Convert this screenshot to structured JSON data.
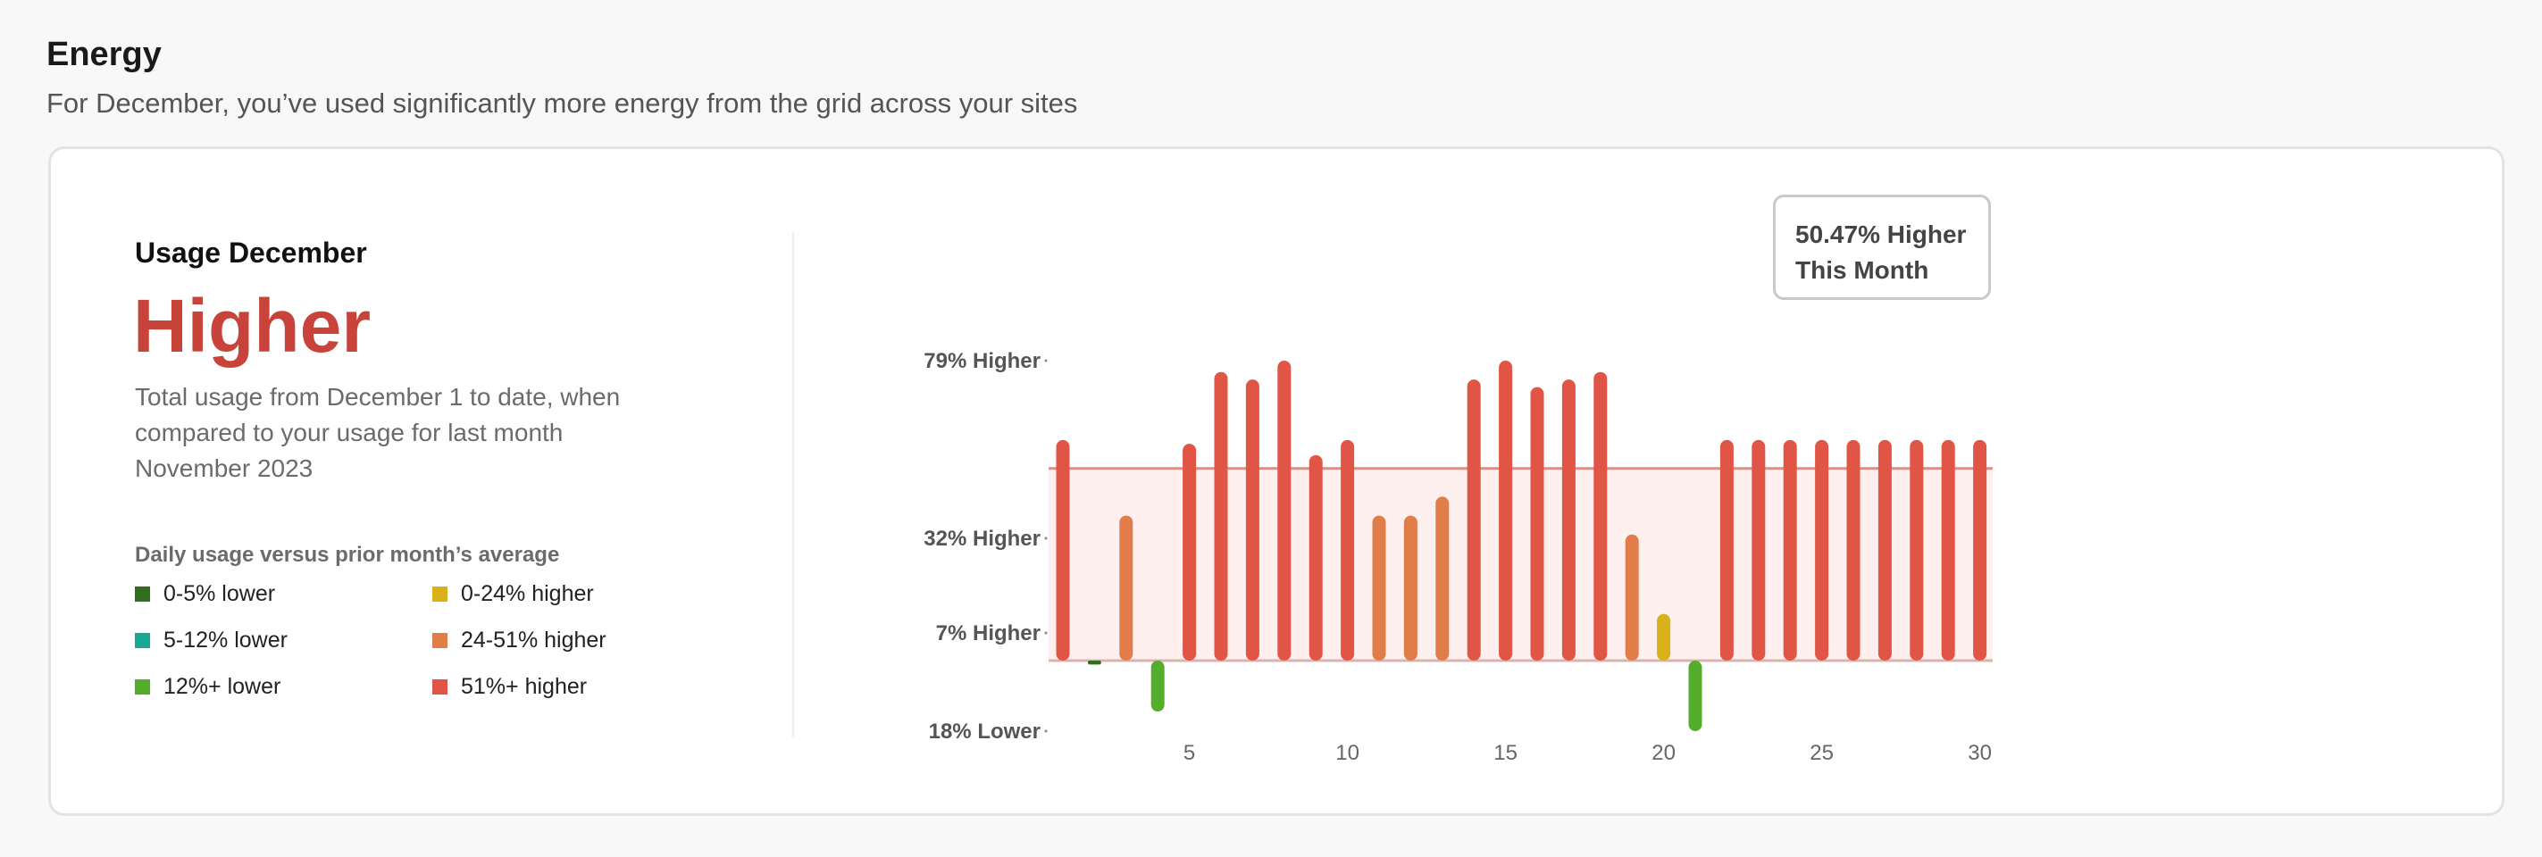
{
  "header": {
    "title": "Energy",
    "subtitle": "For December, you’ve used significantly more energy from the grid across your sites"
  },
  "summary": {
    "title": "Usage December",
    "status": "Higher",
    "description": "Total usage from December 1 to date, when compared to your usage for last month November 2023"
  },
  "legend": {
    "title": "Daily usage versus prior month’s average",
    "items": [
      {
        "label": "0-5% lower",
        "color": "#2e6e1c"
      },
      {
        "label": "5-12% lower",
        "color": "#1aa896"
      },
      {
        "label": "12%+ lower",
        "color": "#55ad2c"
      },
      {
        "label": "0-24% higher",
        "color": "#d9b11a"
      },
      {
        "label": "24-51% higher",
        "color": "#e07d49"
      },
      {
        "label": "51%+ higher",
        "color": "#e05546"
      }
    ]
  },
  "tooltip": {
    "line1": "50.47% Higher",
    "line2": "This Month"
  },
  "chart_data": {
    "type": "bar",
    "title": "",
    "xlabel": "",
    "ylabel": "",
    "y_tick_labels": [
      {
        "label": "79% Higher",
        "value": 79
      },
      {
        "label": "32% Higher",
        "value": 32
      },
      {
        "label": "7% Higher",
        "value": 7
      },
      {
        "label": "18% Lower",
        "value": -18
      }
    ],
    "x_ticks": [
      5,
      10,
      15,
      20,
      25,
      30
    ],
    "average_line": 50.47,
    "x": [
      1,
      2,
      3,
      4,
      5,
      6,
      7,
      8,
      9,
      10,
      11,
      12,
      13,
      14,
      15,
      16,
      17,
      18,
      19,
      20,
      21,
      22,
      23,
      24,
      25,
      26,
      27,
      28,
      29,
      30
    ],
    "values": [
      58,
      -1,
      38,
      -13,
      57,
      76,
      74,
      79,
      54,
      58,
      38,
      38,
      43,
      74,
      79,
      72,
      74,
      76,
      33,
      12,
      -18,
      58,
      58,
      58,
      58,
      58,
      58,
      58,
      58,
      58
    ],
    "colors": [
      "#e05546",
      "#2e6e1c",
      "#e07d49",
      "#55ad2c",
      "#e05546",
      "#e05546",
      "#e05546",
      "#e05546",
      "#e05546",
      "#e05546",
      "#e07d49",
      "#e07d49",
      "#e07d49",
      "#e05546",
      "#e05546",
      "#e05546",
      "#e05546",
      "#e05546",
      "#e07d49",
      "#d9b11a",
      "#55ad2c",
      "#e05546",
      "#e05546",
      "#e05546",
      "#e05546",
      "#e05546",
      "#e05546",
      "#e05546",
      "#e05546",
      "#e05546"
    ],
    "band_color": "#fdf0ee",
    "band_line_color": "#e88a80"
  }
}
